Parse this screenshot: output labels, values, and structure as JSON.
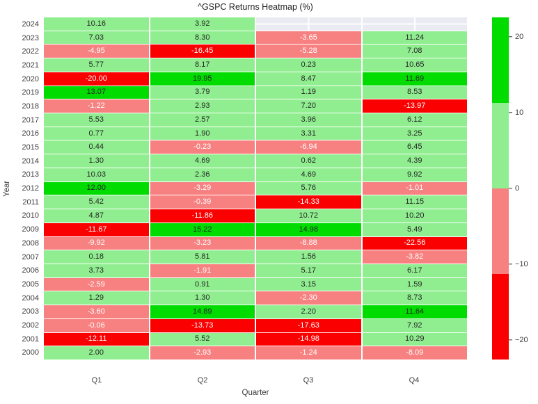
{
  "chart_data": {
    "type": "heatmap",
    "title": "^GSPC Returns Heatmap (%)",
    "xlabel": "Quarter",
    "ylabel": "Year",
    "columns": [
      "Q1",
      "Q2",
      "Q3",
      "Q4"
    ],
    "rows": [
      {
        "year": "2024",
        "values": [
          10.16,
          3.92,
          null,
          null
        ]
      },
      {
        "year": "2023",
        "values": [
          7.03,
          8.3,
          -3.65,
          11.24
        ]
      },
      {
        "year": "2022",
        "values": [
          -4.95,
          -16.45,
          -5.28,
          7.08
        ]
      },
      {
        "year": "2021",
        "values": [
          5.77,
          8.17,
          0.23,
          10.65
        ]
      },
      {
        "year": "2020",
        "values": [
          -20.0,
          19.95,
          8.47,
          11.69
        ]
      },
      {
        "year": "2019",
        "values": [
          13.07,
          3.79,
          1.19,
          8.53
        ]
      },
      {
        "year": "2018",
        "values": [
          -1.22,
          2.93,
          7.2,
          -13.97
        ]
      },
      {
        "year": "2017",
        "values": [
          5.53,
          2.57,
          3.96,
          6.12
        ]
      },
      {
        "year": "2016",
        "values": [
          0.77,
          1.9,
          3.31,
          3.25
        ]
      },
      {
        "year": "2015",
        "values": [
          0.44,
          -0.23,
          -6.94,
          6.45
        ]
      },
      {
        "year": "2014",
        "values": [
          1.3,
          4.69,
          0.62,
          4.39
        ]
      },
      {
        "year": "2013",
        "values": [
          10.03,
          2.36,
          4.69,
          9.92
        ]
      },
      {
        "year": "2012",
        "values": [
          12.0,
          -3.29,
          5.76,
          -1.01
        ]
      },
      {
        "year": "2011",
        "values": [
          5.42,
          -0.39,
          -14.33,
          11.15
        ]
      },
      {
        "year": "2010",
        "values": [
          4.87,
          -11.86,
          10.72,
          10.2
        ]
      },
      {
        "year": "2009",
        "values": [
          -11.67,
          15.22,
          14.98,
          5.49
        ]
      },
      {
        "year": "2008",
        "values": [
          -9.92,
          -3.23,
          -8.88,
          -22.56
        ]
      },
      {
        "year": "2007",
        "values": [
          0.18,
          5.81,
          1.56,
          -3.82
        ]
      },
      {
        "year": "2006",
        "values": [
          3.73,
          -1.91,
          5.17,
          6.17
        ]
      },
      {
        "year": "2005",
        "values": [
          -2.59,
          0.91,
          3.15,
          1.59
        ]
      },
      {
        "year": "2004",
        "values": [
          1.29,
          1.3,
          -2.3,
          8.73
        ]
      },
      {
        "year": "2003",
        "values": [
          -3.6,
          14.89,
          2.2,
          11.64
        ]
      },
      {
        "year": "2002",
        "values": [
          -0.06,
          -13.73,
          -17.63,
          7.92
        ]
      },
      {
        "year": "2001",
        "values": [
          -12.11,
          5.52,
          -14.98,
          10.29
        ]
      },
      {
        "year": "2000",
        "values": [
          2.0,
          -2.93,
          -1.24,
          -8.09
        ]
      }
    ],
    "colorscale": {
      "vmin": -22.56,
      "vmax": 22.56,
      "bins": [
        {
          "max": -11.28,
          "color": "#fa0000"
        },
        {
          "max": 0,
          "color": "#f78181"
        },
        {
          "max": 11.28,
          "color": "#90ee90"
        },
        {
          "max": 22.56,
          "color": "#00dc00"
        }
      ],
      "nan_color": "#eaeaf2",
      "annot_text_dark": "#262626",
      "annot_text_light": "#ffffff"
    },
    "colorbar_ticks": [
      {
        "label": "20",
        "value": 20
      },
      {
        "label": "10",
        "value": 10
      },
      {
        "label": "0",
        "value": 0
      },
      {
        "label": "−10",
        "value": -10
      },
      {
        "label": "−20",
        "value": -20
      }
    ],
    "legend_position": "right",
    "grid": true
  }
}
